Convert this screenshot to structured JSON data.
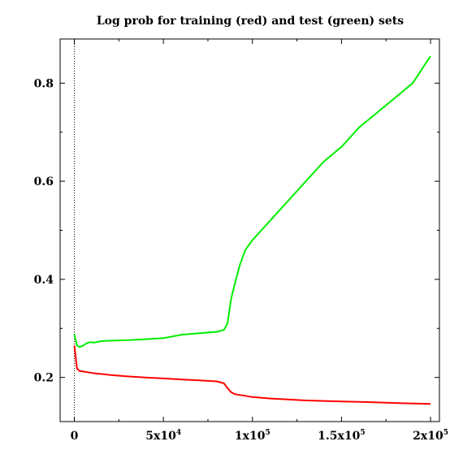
{
  "chart_data": {
    "type": "line",
    "title": "Log prob for training (red) and test (green) sets",
    "xlabel": "",
    "ylabel": "",
    "xlim": [
      -8000,
      205000
    ],
    "ylim": [
      0.11,
      0.89
    ],
    "grid": false,
    "legend": "none",
    "x_ticks": [
      {
        "value": 0,
        "base": "0",
        "exp": ""
      },
      {
        "value": 50000,
        "base": "5x10",
        "exp": "4"
      },
      {
        "value": 100000,
        "base": "1x10",
        "exp": "5"
      },
      {
        "value": 150000,
        "base": "1.5x10",
        "exp": "5"
      },
      {
        "value": 200000,
        "base": "2x10",
        "exp": "5"
      }
    ],
    "y_ticks": [
      {
        "value": 0.2,
        "label": "0.2"
      },
      {
        "value": 0.4,
        "label": "0.4"
      },
      {
        "value": 0.6,
        "label": "0.6"
      },
      {
        "value": 0.8,
        "label": "0.8"
      }
    ],
    "reference_line_x": 0,
    "series": [
      {
        "color": "#ff0000",
        "x": [
          0,
          800,
          1500,
          3000,
          5000,
          10000,
          20000,
          30000,
          40000,
          50000,
          60000,
          70000,
          80000,
          84000,
          86000,
          88000,
          90000,
          100000,
          110000,
          120000,
          130000,
          140000,
          150000,
          160000,
          170000,
          180000,
          190000,
          200000
        ],
        "y": [
          0.265,
          0.24,
          0.218,
          0.213,
          0.212,
          0.209,
          0.205,
          0.202,
          0.2,
          0.198,
          0.196,
          0.194,
          0.192,
          0.188,
          0.178,
          0.17,
          0.166,
          0.16,
          0.157,
          0.155,
          0.153,
          0.152,
          0.151,
          0.15,
          0.149,
          0.148,
          0.147,
          0.146
        ]
      },
      {
        "color": "#00ee00",
        "x": [
          0,
          800,
          1500,
          3000,
          5000,
          7000,
          9000,
          11000,
          15000,
          20000,
          30000,
          40000,
          50000,
          60000,
          70000,
          80000,
          84000,
          86000,
          88000,
          90000,
          93000,
          96000,
          100000,
          105000,
          110000,
          120000,
          130000,
          140000,
          150000,
          160000,
          170000,
          180000,
          190000,
          200000
        ],
        "y": [
          0.288,
          0.275,
          0.265,
          0.262,
          0.265,
          0.27,
          0.272,
          0.271,
          0.274,
          0.275,
          0.276,
          0.278,
          0.28,
          0.287,
          0.29,
          0.293,
          0.297,
          0.31,
          0.36,
          0.39,
          0.43,
          0.46,
          0.48,
          0.5,
          0.52,
          0.56,
          0.6,
          0.64,
          0.67,
          0.71,
          0.74,
          0.77,
          0.8,
          0.855
        ]
      }
    ]
  }
}
